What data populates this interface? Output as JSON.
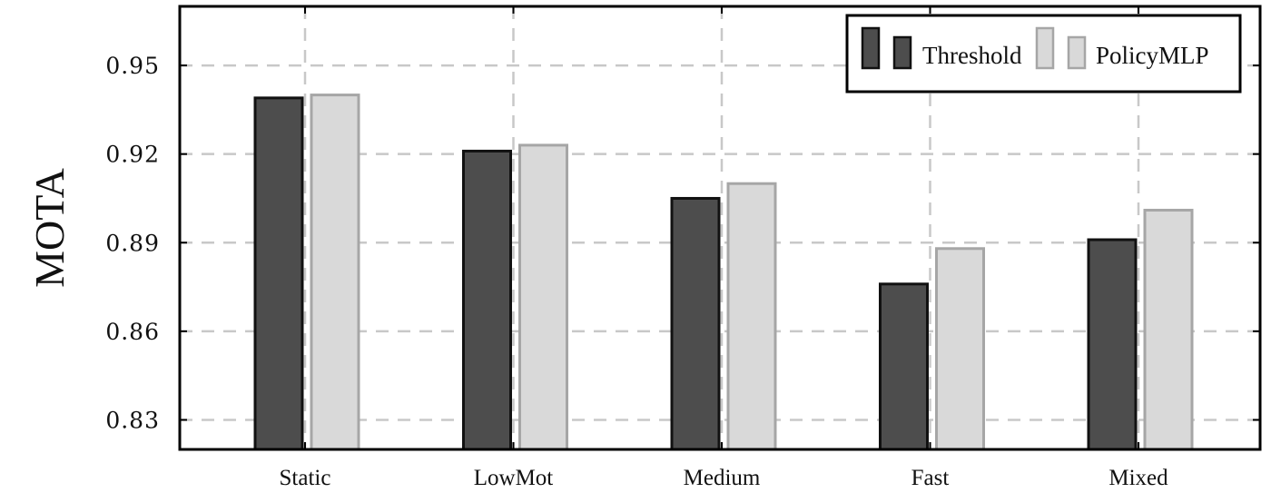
{
  "chart_data": {
    "type": "bar",
    "ylabel": "MOTA",
    "xlabel": "",
    "categories": [
      "Static",
      "LowMot",
      "Medium",
      "Fast",
      "Mixed"
    ],
    "series": [
      {
        "name": "Threshold",
        "color": "#4d4d4d",
        "stroke": "#111111",
        "values": [
          0.939,
          0.921,
          0.905,
          0.876,
          0.891
        ]
      },
      {
        "name": "PolicyMLP",
        "color": "#d9d9d9",
        "stroke": "#a6a6a6",
        "values": [
          0.94,
          0.923,
          0.91,
          0.888,
          0.901
        ]
      }
    ],
    "yticks": [
      0.83,
      0.86,
      0.89,
      0.92,
      0.95
    ],
    "ytick_labels": [
      "0.83",
      "0.86",
      "0.89",
      "0.92",
      "0.95"
    ],
    "ylim": [
      0.82,
      0.97
    ],
    "grid": true,
    "legend_position": "top-right"
  }
}
